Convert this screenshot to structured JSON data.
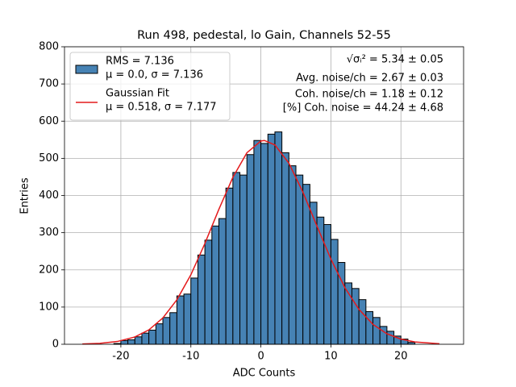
{
  "chart_data": {
    "type": "histogram",
    "title": "Run 498, pedestal, lo Gain, Channels 52-55",
    "xlabel": "ADC Counts",
    "ylabel": "Entries",
    "bins": [
      -21,
      -20,
      -19,
      -18,
      -17,
      -16,
      -15,
      -14,
      -13,
      -12,
      -11,
      -10,
      -9,
      -8,
      -7,
      -6,
      -5,
      -4,
      -3,
      -2,
      -1,
      0,
      1,
      2,
      3,
      4,
      5,
      6,
      7,
      8,
      9,
      10,
      11,
      12,
      13,
      14,
      15,
      16,
      17,
      18,
      19,
      20,
      21,
      22
    ],
    "counts": [
      2,
      10,
      12,
      20,
      30,
      38,
      55,
      72,
      85,
      130,
      135,
      178,
      240,
      280,
      318,
      338,
      420,
      462,
      455,
      510,
      548,
      540,
      565,
      571,
      515,
      480,
      455,
      430,
      382,
      342,
      322,
      282,
      220,
      165,
      150,
      120,
      88,
      72,
      48,
      35,
      22,
      14,
      5
    ],
    "color": "#4682b4",
    "edgecolor": "#000000",
    "hist_label": [
      "RMS = 7.136",
      "μ = 0.0, σ = 7.136"
    ],
    "fit": {
      "type": "line",
      "name": [
        "Gaussian Fit",
        "μ = 0.518, σ = 7.177"
      ],
      "color": "#e41a1c",
      "x": [
        -25.5,
        -23,
        -20.5,
        -18,
        -16,
        -14,
        -12,
        -10,
        -8,
        -6,
        -4,
        -2,
        0,
        0.5,
        2,
        4,
        6,
        8,
        10,
        12,
        14,
        16,
        18,
        20,
        22,
        25.5
      ],
      "values": [
        0.8,
        2.5,
        7.5,
        19.6,
        38.7,
        70.8,
        119.7,
        187,
        271,
        363,
        449,
        515,
        546.6,
        548,
        536,
        487,
        409,
        318,
        229,
        152,
        94,
        53.5,
        28.2,
        13.8,
        6.2,
        1.3
      ]
    },
    "annotations": [
      "√σᵢ² = 5.34 ± 0.05",
      "Avg. noise/ch = 2.67 ± 0.03",
      "Coh. noise/ch = 1.18 ± 0.12",
      "[%] Coh. noise = 44.24 ± 4.68"
    ],
    "legend": "upper left",
    "grid": true,
    "xlim": [
      -28.05,
      28.95
    ],
    "ylim": [
      0,
      800
    ],
    "xticks": [
      -20,
      -10,
      0,
      10,
      20
    ],
    "yticks": [
      0,
      100,
      200,
      300,
      400,
      500,
      600,
      700,
      800
    ]
  }
}
